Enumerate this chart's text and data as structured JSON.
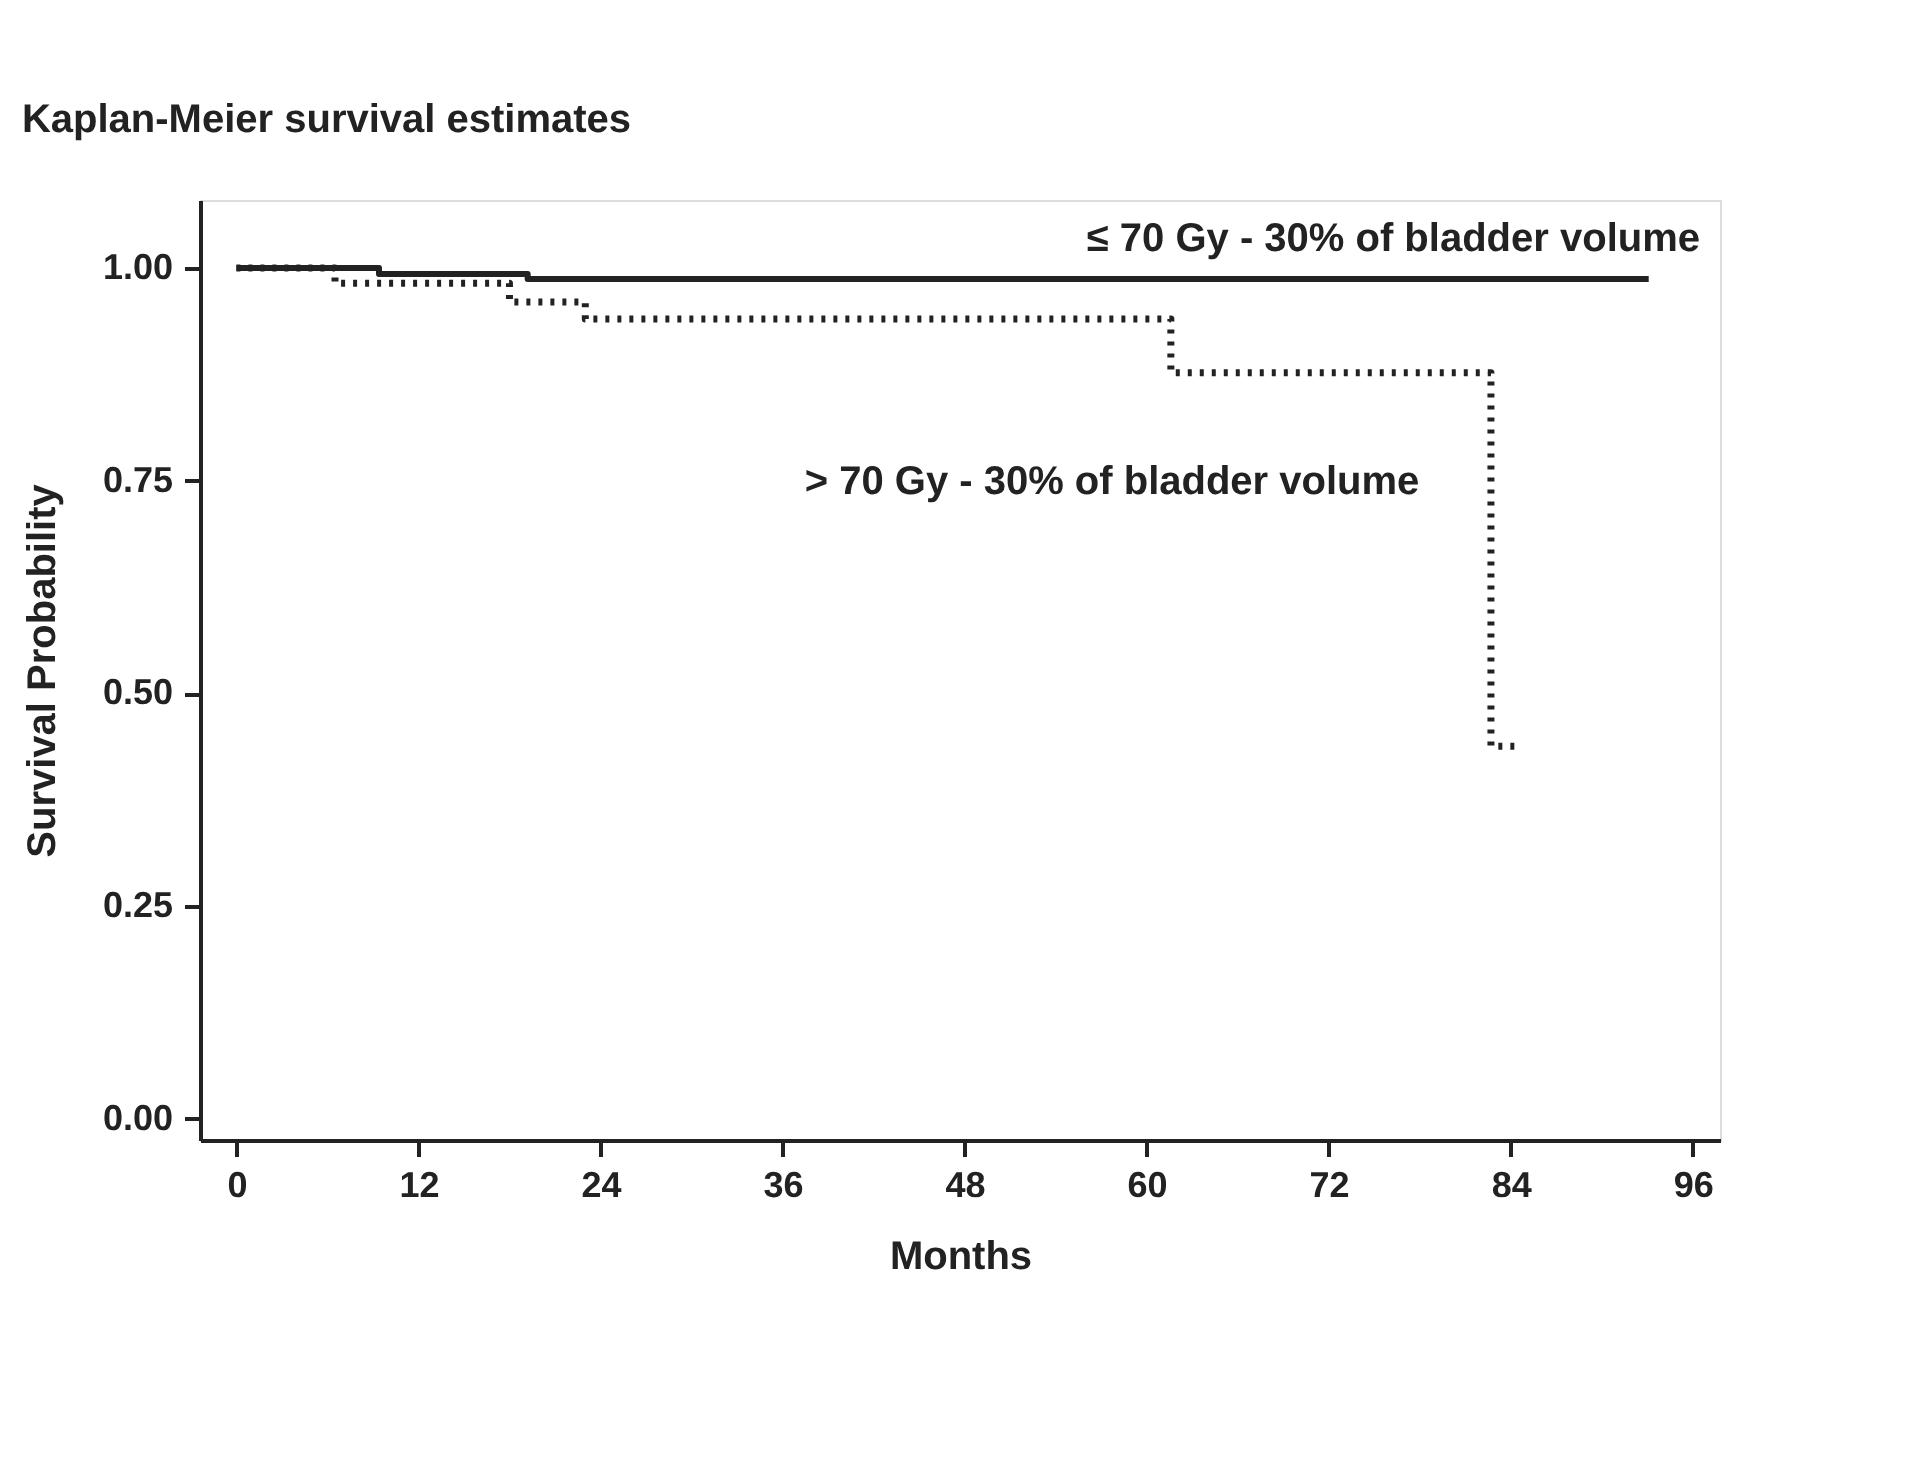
{
  "chart_data": {
    "type": "step",
    "title": "Kaplan-Meier survival estimates",
    "xlabel": "Months",
    "ylabel": "Survival Probability",
    "xlim": [
      -2.4,
      97.8
    ],
    "xticks": [
      0,
      12,
      24,
      36,
      48,
      60,
      72,
      84,
      96
    ],
    "ylim": [
      -0.025,
      1.08
    ],
    "yticks": [
      {
        "value": 0,
        "label": "0.00"
      },
      {
        "value": 0.25,
        "label": "0.25"
      },
      {
        "value": 0.5,
        "label": "0.50"
      },
      {
        "value": 0.75,
        "label": "0.75"
      },
      {
        "value": 1,
        "label": "1.00"
      }
    ],
    "grid": false,
    "marker": "none",
    "series": [
      {
        "name": "≤ 70 Gy - 30% of bladder volume",
        "color": "#222222",
        "line_style": "solid",
        "x": [
          0,
          9.4,
          19.2,
          93.1
        ],
        "values": [
          1.0,
          0.993,
          0.987,
          0.987
        ]
      },
      {
        "name": "> 70 Gy - 30% of bladder volume",
        "color": "#222222",
        "line_style": "dotted",
        "x": [
          0,
          6.5,
          18.0,
          23.0,
          61.6,
          82.7,
          84.5
        ],
        "values": [
          1.0,
          0.982,
          0.96,
          0.94,
          0.877,
          0.438,
          0.438
        ]
      }
    ]
  }
}
